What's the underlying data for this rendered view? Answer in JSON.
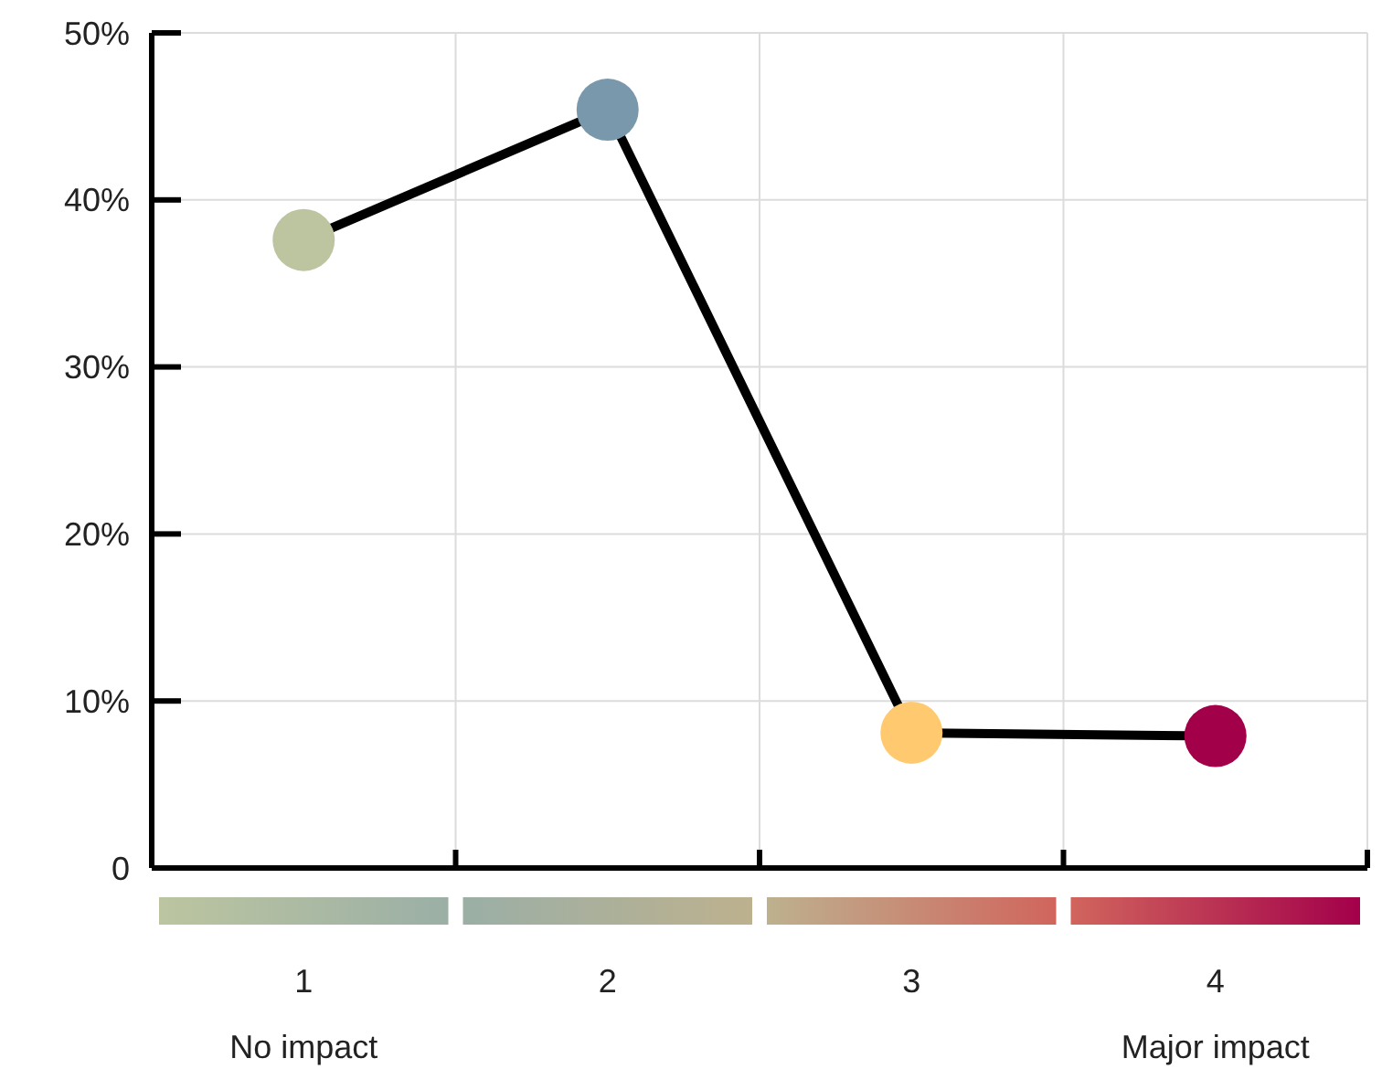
{
  "chart_data": {
    "type": "line",
    "categories": [
      "1",
      "2",
      "3",
      "4"
    ],
    "series": [
      {
        "color": "#000000",
        "colors": [
          "#bcc5a0",
          "#7a98ab",
          "#ffc970",
          "#a3004a"
        ],
        "values": [
          37.6,
          45.4,
          8.1,
          7.9
        ]
      }
    ],
    "ylim": [
      0,
      50
    ],
    "yticks": [
      0,
      {
        "value": 10,
        "label": "10%"
      },
      {
        "value": 20,
        "label": "20%"
      },
      {
        "value": 30,
        "label": "30%"
      },
      {
        "value": 40,
        "label": "40%"
      },
      {
        "value": 50,
        "label": "50%"
      }
    ],
    "grid": true,
    "marker": "circle",
    "line_style": "solid",
    "annotations": [
      "No impact",
      "Major impact"
    ]
  }
}
